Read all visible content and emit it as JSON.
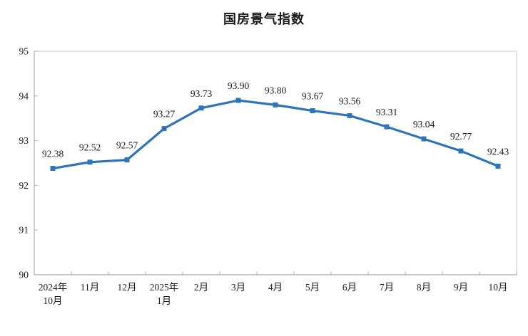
{
  "chart": {
    "title": "国房景气指数"
  },
  "chart_data": {
    "type": "line",
    "title": "国房景气指数",
    "categories": [
      "2024年\n10月",
      "11月",
      "12月",
      "2025年\n1月",
      "2月",
      "3月",
      "4月",
      "5月",
      "6月",
      "7月",
      "8月",
      "9月",
      "10月"
    ],
    "values": [
      92.38,
      92.52,
      92.57,
      93.27,
      93.73,
      93.9,
      93.8,
      93.67,
      93.56,
      93.31,
      93.04,
      92.77,
      92.43
    ],
    "data_labels": [
      "92.38",
      "92.52",
      "92.57",
      "93.27",
      "93.73",
      "93.90",
      "93.80",
      "93.67",
      "93.56",
      "93.31",
      "93.04",
      "92.77",
      "92.43"
    ],
    "xlabel": "",
    "ylabel": "",
    "ylim": [
      90,
      95
    ],
    "yticks": [
      90,
      91,
      92,
      93,
      94,
      95
    ],
    "grid": false,
    "legend": "none",
    "line_color": "#2E74B8",
    "marker": "square",
    "axis_color": "#BDBDBD",
    "plot_border_color": "#D9D9D9",
    "tick_label_color": "#1a1a1a",
    "data_label_color": "#1a1a1a"
  }
}
